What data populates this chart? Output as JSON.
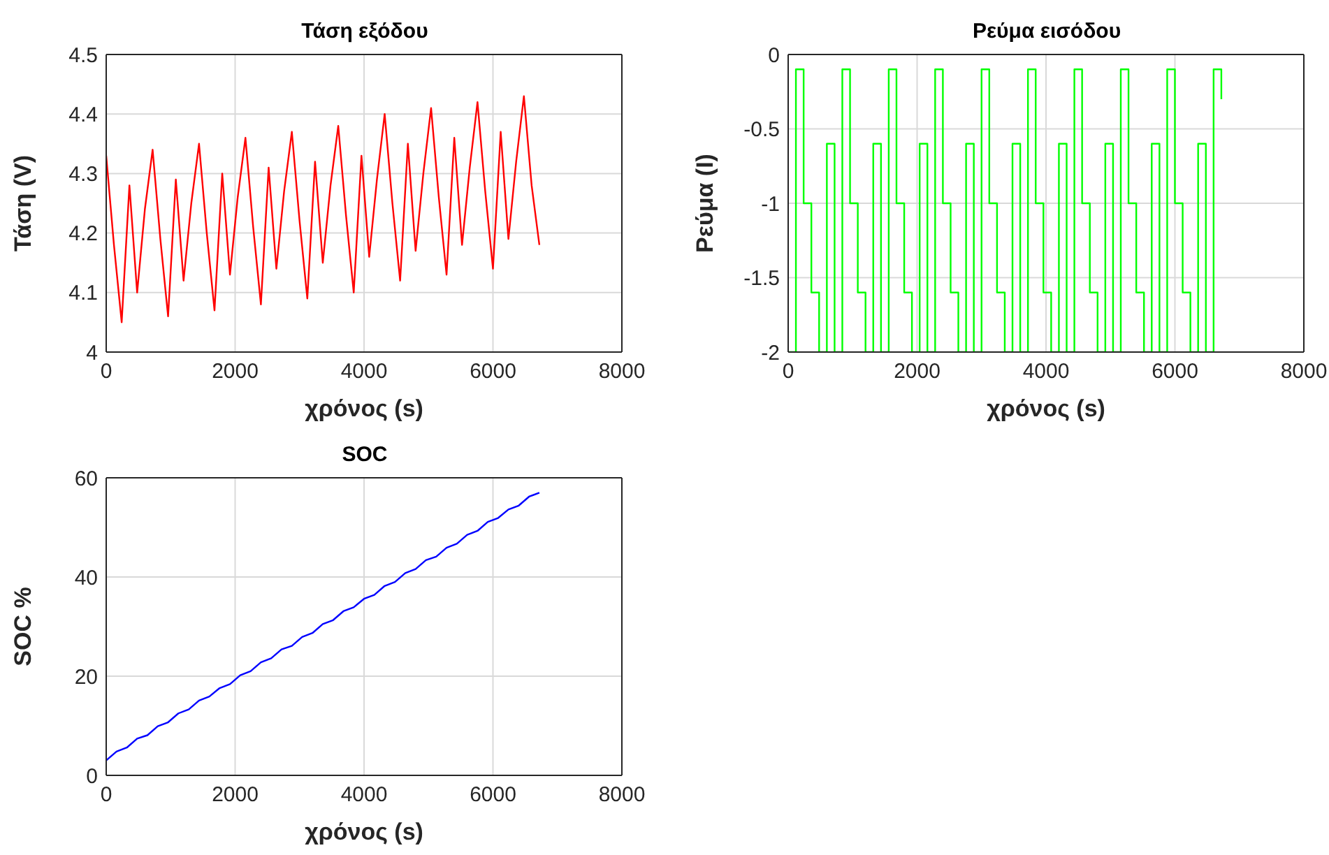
{
  "chart_data": [
    {
      "type": "line",
      "title": "Τάση εξόδου",
      "xlabel": "χρόνος (s)",
      "ylabel": "Τάση (V)",
      "x": [
        0,
        120,
        240,
        360,
        480,
        600,
        720,
        840,
        960,
        1080,
        1200,
        1320,
        1440,
        1560,
        1680,
        1800,
        1920,
        2040,
        2160,
        2280,
        2400,
        2520,
        2640,
        2760,
        2880,
        3000,
        3120,
        3240,
        3360,
        3480,
        3600,
        3720,
        3840,
        3960,
        4080,
        4200,
        4320,
        4440,
        4560,
        4680,
        4800,
        4920,
        5040,
        5160,
        5280,
        5400,
        5520,
        5640,
        5760,
        5880,
        6000,
        6120,
        6240,
        6360,
        6480,
        6600,
        6720
      ],
      "series": [
        {
          "color": "#ff0000",
          "values": [
            4.33,
            4.18,
            4.05,
            4.28,
            4.1,
            4.24,
            4.34,
            4.19,
            4.06,
            4.29,
            4.12,
            4.25,
            4.35,
            4.2,
            4.07,
            4.3,
            4.13,
            4.26,
            4.36,
            4.21,
            4.08,
            4.31,
            4.14,
            4.27,
            4.37,
            4.22,
            4.09,
            4.32,
            4.15,
            4.28,
            4.38,
            4.23,
            4.1,
            4.33,
            4.16,
            4.29,
            4.4,
            4.25,
            4.12,
            4.35,
            4.17,
            4.3,
            4.41,
            4.26,
            4.13,
            4.36,
            4.18,
            4.31,
            4.42,
            4.27,
            4.14,
            4.37,
            4.19,
            4.32,
            4.43,
            4.28,
            4.18
          ]
        }
      ],
      "xlim": [
        0,
        8000
      ],
      "xticks": [
        0,
        2000,
        4000,
        6000,
        8000
      ],
      "ylim": [
        4,
        4.5
      ],
      "yticks": [
        4,
        4.1,
        4.2,
        4.3,
        4.4,
        4.5
      ],
      "grid": true
    },
    {
      "type": "step",
      "title": "Ρεύμα εισόδου",
      "xlabel": "χρόνος (s)",
      "ylabel": "Ρεύμα (I)",
      "x": [
        0,
        120,
        240,
        360,
        480,
        600,
        720,
        840,
        960,
        1080,
        1200,
        1320,
        1440,
        1560,
        1680,
        1800,
        1920,
        2040,
        2160,
        2280,
        2400,
        2520,
        2640,
        2760,
        2880,
        3000,
        3120,
        3240,
        3360,
        3480,
        3600,
        3720,
        3840,
        3960,
        4080,
        4200,
        4320,
        4440,
        4560,
        4680,
        4800,
        4920,
        5040,
        5160,
        5280,
        5400,
        5520,
        5640,
        5760,
        5880,
        6000,
        6120,
        6240,
        6360,
        6480,
        6600,
        6720
      ],
      "series": [
        {
          "color": "#00ff00",
          "values": [
            -2,
            -0.1,
            -1,
            -1.6,
            -2,
            -0.6,
            -2,
            -0.1,
            -1,
            -1.6,
            -2,
            -0.6,
            -2,
            -0.1,
            -1,
            -1.6,
            -2,
            -0.6,
            -2,
            -0.1,
            -1,
            -1.6,
            -2,
            -0.6,
            -2,
            -0.1,
            -1,
            -1.6,
            -2,
            -0.6,
            -2,
            -0.1,
            -1,
            -1.6,
            -2,
            -0.6,
            -2,
            -0.1,
            -1,
            -1.6,
            -2,
            -0.6,
            -2,
            -0.1,
            -1,
            -1.6,
            -2,
            -0.6,
            -2,
            -0.1,
            -1,
            -1.6,
            -2,
            -0.6,
            -2,
            -0.1,
            -0.3
          ]
        }
      ],
      "xlim": [
        0,
        8000
      ],
      "xticks": [
        0,
        2000,
        4000,
        6000,
        8000
      ],
      "ylim": [
        -2,
        0
      ],
      "yticks": [
        -2,
        -1.5,
        -1,
        -0.5,
        0
      ],
      "grid": true
    },
    {
      "type": "line",
      "title": "SOC",
      "xlabel": "χρόνος (s)",
      "ylabel": "SOC %",
      "x": [
        0,
        160,
        320,
        480,
        640,
        800,
        960,
        1120,
        1280,
        1440,
        1600,
        1760,
        1920,
        2080,
        2240,
        2400,
        2560,
        2720,
        2880,
        3040,
        3200,
        3360,
        3520,
        3680,
        3840,
        4000,
        4160,
        4320,
        4480,
        4640,
        4800,
        4960,
        5120,
        5280,
        5440,
        5600,
        5760,
        5920,
        6080,
        6240,
        6400,
        6560,
        6720
      ],
      "series": [
        {
          "color": "#0000ff",
          "values": [
            3,
            4.8,
            5.6,
            7.4,
            8.1,
            9.9,
            10.7,
            12.5,
            13.3,
            15.1,
            15.9,
            17.6,
            18.4,
            20.2,
            21,
            22.8,
            23.6,
            25.4,
            26.1,
            27.9,
            28.7,
            30.5,
            31.3,
            33.1,
            33.9,
            35.6,
            36.4,
            38.2,
            39,
            40.8,
            41.6,
            43.4,
            44.1,
            45.9,
            46.7,
            48.5,
            49.3,
            51.1,
            51.9,
            53.6,
            54.4,
            56.2,
            57
          ]
        }
      ],
      "xlim": [
        0,
        8000
      ],
      "xticks": [
        0,
        2000,
        4000,
        6000,
        8000
      ],
      "ylim": [
        0,
        60
      ],
      "yticks": [
        0,
        20,
        40,
        60
      ],
      "grid": true
    }
  ]
}
